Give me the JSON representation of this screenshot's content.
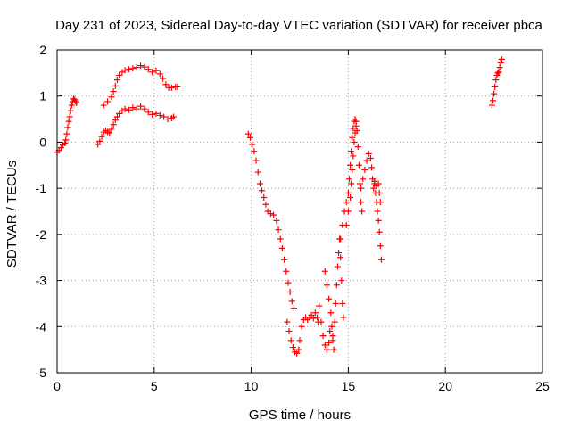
{
  "chart_data": {
    "type": "scatter",
    "title": "Day 231 of 2023, Sidereal Day-to-day VTEC variation (SDTVAR) for receiver pbca",
    "xlabel": "GPS time / hours",
    "ylabel": "SDTVAR / TECUs",
    "xlim": [
      0,
      25
    ],
    "ylim": [
      -5,
      2
    ],
    "xticks": [
      0,
      5,
      10,
      15,
      20,
      25
    ],
    "yticks": [
      -5,
      -4,
      -3,
      -2,
      -1,
      0,
      1,
      2
    ],
    "xtick_labels": [
      "0",
      "5",
      "10",
      "15",
      "20",
      "25"
    ],
    "ytick_labels": [
      "-5",
      "-4",
      "-3",
      "-2",
      "-1",
      "0",
      "1",
      "2"
    ],
    "grid": true,
    "marker": "+",
    "color": "#ff0000",
    "series": [
      {
        "values": [
          [
            0.0,
            -0.22
          ],
          [
            0.1,
            -0.18
          ],
          [
            0.2,
            -0.12
          ],
          [
            0.3,
            -0.06
          ],
          [
            0.4,
            -0.02
          ],
          [
            0.45,
            0.05
          ],
          [
            0.5,
            0.18
          ],
          [
            0.55,
            0.32
          ],
          [
            0.6,
            0.45
          ],
          [
            0.65,
            0.55
          ],
          [
            0.7,
            0.68
          ],
          [
            0.75,
            0.8
          ],
          [
            0.8,
            0.88
          ],
          [
            0.85,
            0.94
          ],
          [
            0.9,
            0.92
          ],
          [
            0.95,
            0.88
          ],
          [
            1.0,
            0.85
          ]
        ]
      },
      {
        "values": [
          [
            2.4,
            0.8
          ],
          [
            2.6,
            0.88
          ],
          [
            2.8,
            0.98
          ],
          [
            2.9,
            1.1
          ],
          [
            3.0,
            1.22
          ],
          [
            3.1,
            1.35
          ],
          [
            3.2,
            1.45
          ],
          [
            3.35,
            1.52
          ],
          [
            3.5,
            1.56
          ],
          [
            3.7,
            1.58
          ],
          [
            3.9,
            1.6
          ],
          [
            4.1,
            1.62
          ],
          [
            4.3,
            1.66
          ],
          [
            4.5,
            1.63
          ],
          [
            4.7,
            1.58
          ],
          [
            4.9,
            1.52
          ],
          [
            5.1,
            1.55
          ],
          [
            5.3,
            1.48
          ],
          [
            5.45,
            1.38
          ],
          [
            5.6,
            1.25
          ],
          [
            5.75,
            1.18
          ],
          [
            5.9,
            1.18
          ],
          [
            6.1,
            1.2
          ],
          [
            6.2,
            1.2
          ]
        ]
      },
      {
        "values": [
          [
            2.1,
            -0.05
          ],
          [
            2.2,
            0.02
          ],
          [
            2.3,
            0.12
          ],
          [
            2.4,
            0.22
          ],
          [
            2.5,
            0.25
          ],
          [
            2.6,
            0.22
          ],
          [
            2.7,
            0.2
          ],
          [
            2.8,
            0.28
          ],
          [
            2.9,
            0.38
          ],
          [
            3.0,
            0.48
          ],
          [
            3.1,
            0.55
          ],
          [
            3.2,
            0.62
          ],
          [
            3.35,
            0.68
          ],
          [
            3.5,
            0.72
          ],
          [
            3.7,
            0.7
          ],
          [
            3.9,
            0.75
          ],
          [
            4.1,
            0.72
          ],
          [
            4.3,
            0.78
          ],
          [
            4.5,
            0.72
          ],
          [
            4.7,
            0.65
          ],
          [
            4.9,
            0.6
          ],
          [
            5.1,
            0.62
          ],
          [
            5.3,
            0.58
          ],
          [
            5.5,
            0.55
          ],
          [
            5.7,
            0.5
          ],
          [
            5.9,
            0.52
          ],
          [
            6.0,
            0.55
          ]
        ]
      },
      {
        "values": [
          [
            9.85,
            0.18
          ],
          [
            9.95,
            0.1
          ],
          [
            10.05,
            -0.05
          ],
          [
            10.15,
            -0.2
          ],
          [
            10.25,
            -0.4
          ],
          [
            10.35,
            -0.65
          ],
          [
            10.45,
            -0.9
          ],
          [
            10.55,
            -1.05
          ],
          [
            10.65,
            -1.2
          ],
          [
            10.75,
            -1.35
          ],
          [
            10.85,
            -1.5
          ],
          [
            11.0,
            -1.55
          ],
          [
            11.15,
            -1.58
          ],
          [
            11.3,
            -1.7
          ],
          [
            11.4,
            -1.9
          ],
          [
            11.5,
            -2.1
          ],
          [
            11.6,
            -2.3
          ],
          [
            11.7,
            -2.55
          ],
          [
            11.8,
            -2.8
          ],
          [
            11.9,
            -3.05
          ],
          [
            12.0,
            -3.25
          ],
          [
            12.1,
            -3.45
          ],
          [
            12.2,
            -3.6
          ]
        ]
      },
      {
        "values": [
          [
            11.85,
            -3.9
          ],
          [
            11.95,
            -4.1
          ],
          [
            12.05,
            -4.3
          ],
          [
            12.15,
            -4.45
          ],
          [
            12.25,
            -4.55
          ],
          [
            12.35,
            -4.58
          ],
          [
            12.45,
            -4.5
          ],
          [
            12.5,
            -4.3
          ],
          [
            12.6,
            -4.0
          ],
          [
            12.7,
            -3.85
          ],
          [
            12.8,
            -3.8
          ],
          [
            12.9,
            -3.85
          ],
          [
            13.0,
            -3.8
          ],
          [
            13.1,
            -3.75
          ],
          [
            13.2,
            -3.82
          ],
          [
            13.3,
            -3.7
          ],
          [
            13.4,
            -3.8
          ],
          [
            13.45,
            -3.9
          ]
        ]
      },
      {
        "values": [
          [
            13.5,
            -3.55
          ],
          [
            13.6,
            -3.9
          ],
          [
            13.7,
            -4.2
          ],
          [
            13.8,
            -4.4
          ],
          [
            13.9,
            -4.5
          ],
          [
            14.0,
            -4.35
          ],
          [
            14.05,
            -4.1
          ]
        ]
      },
      {
        "values": [
          [
            13.8,
            -2.8
          ],
          [
            13.9,
            -3.1
          ],
          [
            14.0,
            -3.4
          ],
          [
            14.1,
            -3.7
          ],
          [
            14.15,
            -4.0
          ],
          [
            14.2,
            -4.3
          ],
          [
            14.25,
            -4.5
          ]
        ]
      },
      {
        "values": [
          [
            14.2,
            -4.2
          ],
          [
            14.3,
            -3.9
          ],
          [
            14.35,
            -3.5
          ],
          [
            14.4,
            -3.1
          ],
          [
            14.45,
            -2.7
          ],
          [
            14.5,
            -2.4
          ],
          [
            14.55,
            -2.1
          ],
          [
            14.6,
            -2.5
          ],
          [
            14.65,
            -3.0
          ],
          [
            14.7,
            -3.5
          ],
          [
            14.75,
            -3.8
          ]
        ]
      },
      {
        "values": [
          [
            14.6,
            -2.1
          ],
          [
            14.7,
            -1.8
          ],
          [
            14.8,
            -1.5
          ],
          [
            14.9,
            -1.3
          ],
          [
            15.0,
            -1.1
          ],
          [
            15.05,
            -0.8
          ],
          [
            15.1,
            -0.5
          ],
          [
            15.15,
            -0.2
          ],
          [
            15.2,
            0.1
          ],
          [
            15.25,
            0.3
          ],
          [
            15.3,
            0.45
          ],
          [
            15.35,
            0.5
          ],
          [
            15.4,
            0.45
          ],
          [
            15.45,
            0.25
          ],
          [
            15.5,
            -0.1
          ],
          [
            15.55,
            -0.5
          ],
          [
            15.6,
            -0.9
          ],
          [
            15.65,
            -1.3
          ],
          [
            15.7,
            -1.5
          ]
        ]
      },
      {
        "values": [
          [
            14.9,
            -1.8
          ],
          [
            15.0,
            -1.5
          ],
          [
            15.1,
            -1.2
          ],
          [
            15.15,
            -0.9
          ],
          [
            15.2,
            -0.6
          ],
          [
            15.25,
            -0.3
          ],
          [
            15.3,
            0.0
          ],
          [
            15.35,
            0.2
          ],
          [
            15.4,
            0.35
          ]
        ]
      },
      {
        "values": [
          [
            15.65,
            -1.0
          ],
          [
            15.75,
            -0.8
          ],
          [
            15.85,
            -0.6
          ],
          [
            15.95,
            -0.4
          ],
          [
            16.05,
            -0.25
          ],
          [
            16.15,
            -0.35
          ],
          [
            16.2,
            -0.55
          ],
          [
            16.25,
            -0.8
          ],
          [
            16.3,
            -1.0
          ],
          [
            16.35,
            -0.9
          ],
          [
            16.4,
            -1.1
          ],
          [
            16.45,
            -1.3
          ],
          [
            16.5,
            -1.5
          ],
          [
            16.55,
            -1.7
          ],
          [
            16.6,
            -1.95
          ],
          [
            16.65,
            -2.25
          ],
          [
            16.7,
            -2.55
          ]
        ]
      },
      {
        "values": [
          [
            16.35,
            -0.85
          ],
          [
            16.45,
            -0.95
          ],
          [
            16.55,
            -0.9
          ],
          [
            16.6,
            -1.1
          ],
          [
            16.65,
            -1.3
          ]
        ]
      },
      {
        "values": [
          [
            22.4,
            0.8
          ],
          [
            22.45,
            0.9
          ],
          [
            22.5,
            1.05
          ],
          [
            22.55,
            1.2
          ],
          [
            22.6,
            1.35
          ],
          [
            22.65,
            1.45
          ],
          [
            22.7,
            1.5
          ],
          [
            22.75,
            1.52
          ],
          [
            22.8,
            1.62
          ],
          [
            22.85,
            1.72
          ],
          [
            22.9,
            1.8
          ]
        ]
      }
    ]
  }
}
